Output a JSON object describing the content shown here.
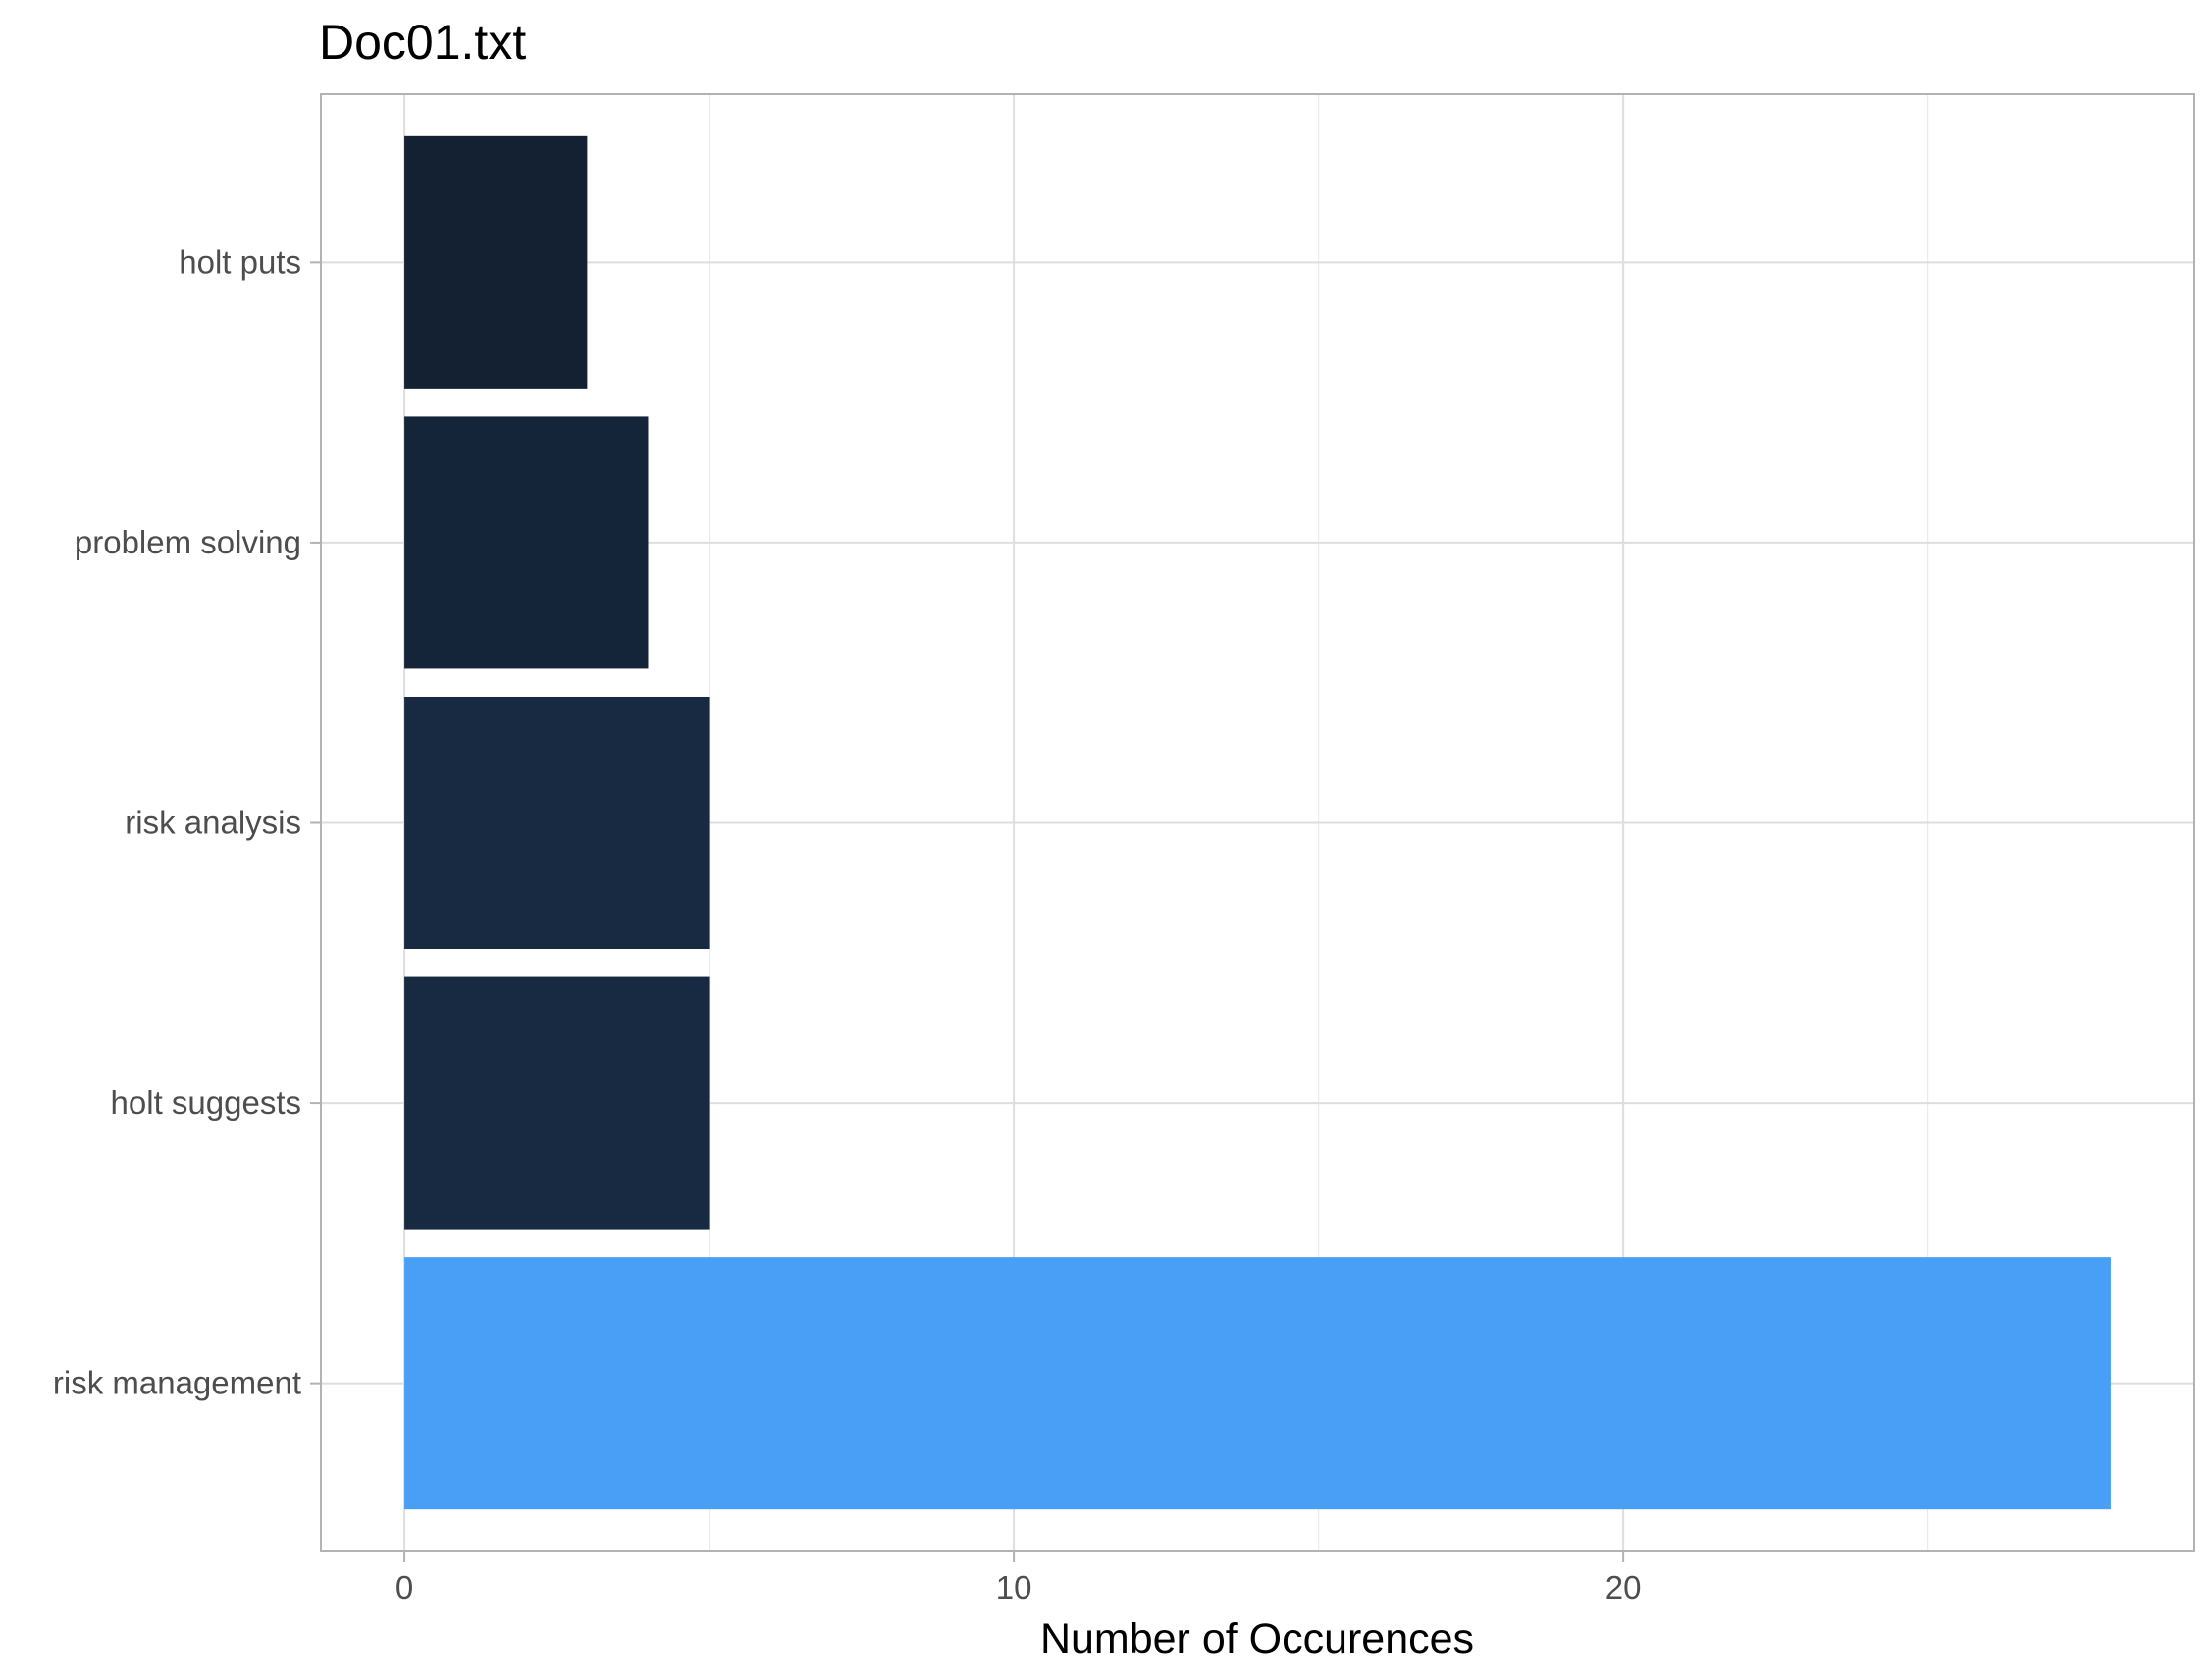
{
  "chart_data": {
    "type": "bar",
    "orientation": "horizontal",
    "title": "Doc01.txt",
    "xlabel": "Number of Occurences",
    "ylabel": "",
    "categories": [
      "holt puts",
      "problem solving",
      "risk analysis",
      "holt suggests",
      "risk management"
    ],
    "values": [
      3,
      4,
      5,
      5,
      28
    ],
    "bar_colors": [
      "#132133",
      "#152539",
      "#172a41",
      "#172a41",
      "#489ff5"
    ],
    "xlim": [
      -1.37,
      29.37
    ],
    "xticks": [
      0,
      10,
      20
    ],
    "xtick_labels": [
      "0",
      "10",
      "20"
    ],
    "grid": true,
    "legend": "none"
  }
}
